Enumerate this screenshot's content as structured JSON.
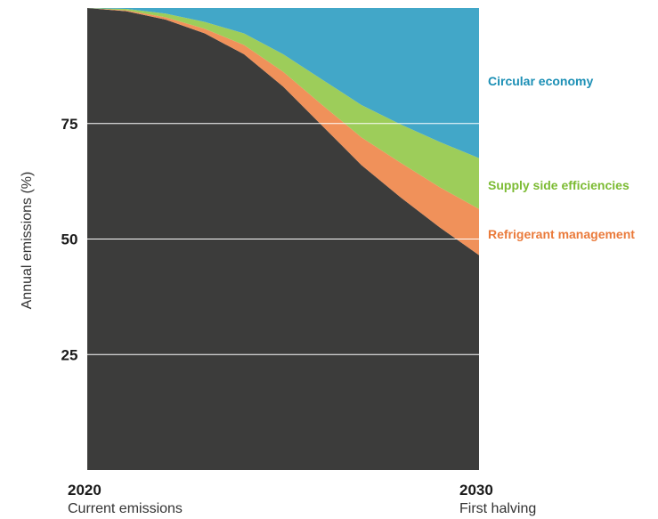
{
  "chart_data": {
    "type": "area",
    "stacked": true,
    "ylabel": "Annual emissions (%)",
    "ylim": [
      0,
      100
    ],
    "yticks": [
      25,
      50,
      75
    ],
    "x": [
      2020,
      2021,
      2022,
      2023,
      2024,
      2025,
      2026,
      2027,
      2028,
      2029,
      2030
    ],
    "x_tick_labels": [
      {
        "year": "2020",
        "label": "Current emissions"
      },
      {
        "year": "2030",
        "label": "First halving"
      }
    ],
    "series": [
      {
        "key": "remaining",
        "color": "#3c3c3b",
        "values": [
          100,
          99.3,
          97.5,
          94.5,
          90,
          83,
          74.5,
          66,
          59,
          52.5,
          46.5
        ]
      },
      {
        "key": "refrigerant",
        "name": "Refrigerant management",
        "color": "#f0915a",
        "values": [
          0,
          0.2,
          0.5,
          1.0,
          2.0,
          3.2,
          4.5,
          6.0,
          7.5,
          8.7,
          10
        ]
      },
      {
        "key": "supply",
        "name": "Supply side efficiencies",
        "color": "#9dcd5a",
        "values": [
          0,
          0.3,
          0.8,
          1.5,
          2.5,
          3.8,
          5.5,
          7.0,
          8.3,
          9.8,
          11
        ]
      },
      {
        "key": "circular",
        "name": "Circular economy",
        "color": "#42a7c8",
        "values": [
          0,
          0.2,
          1.2,
          3.0,
          5.5,
          10,
          15.5,
          21,
          25.2,
          29,
          32.5
        ]
      }
    ],
    "grid": true
  }
}
